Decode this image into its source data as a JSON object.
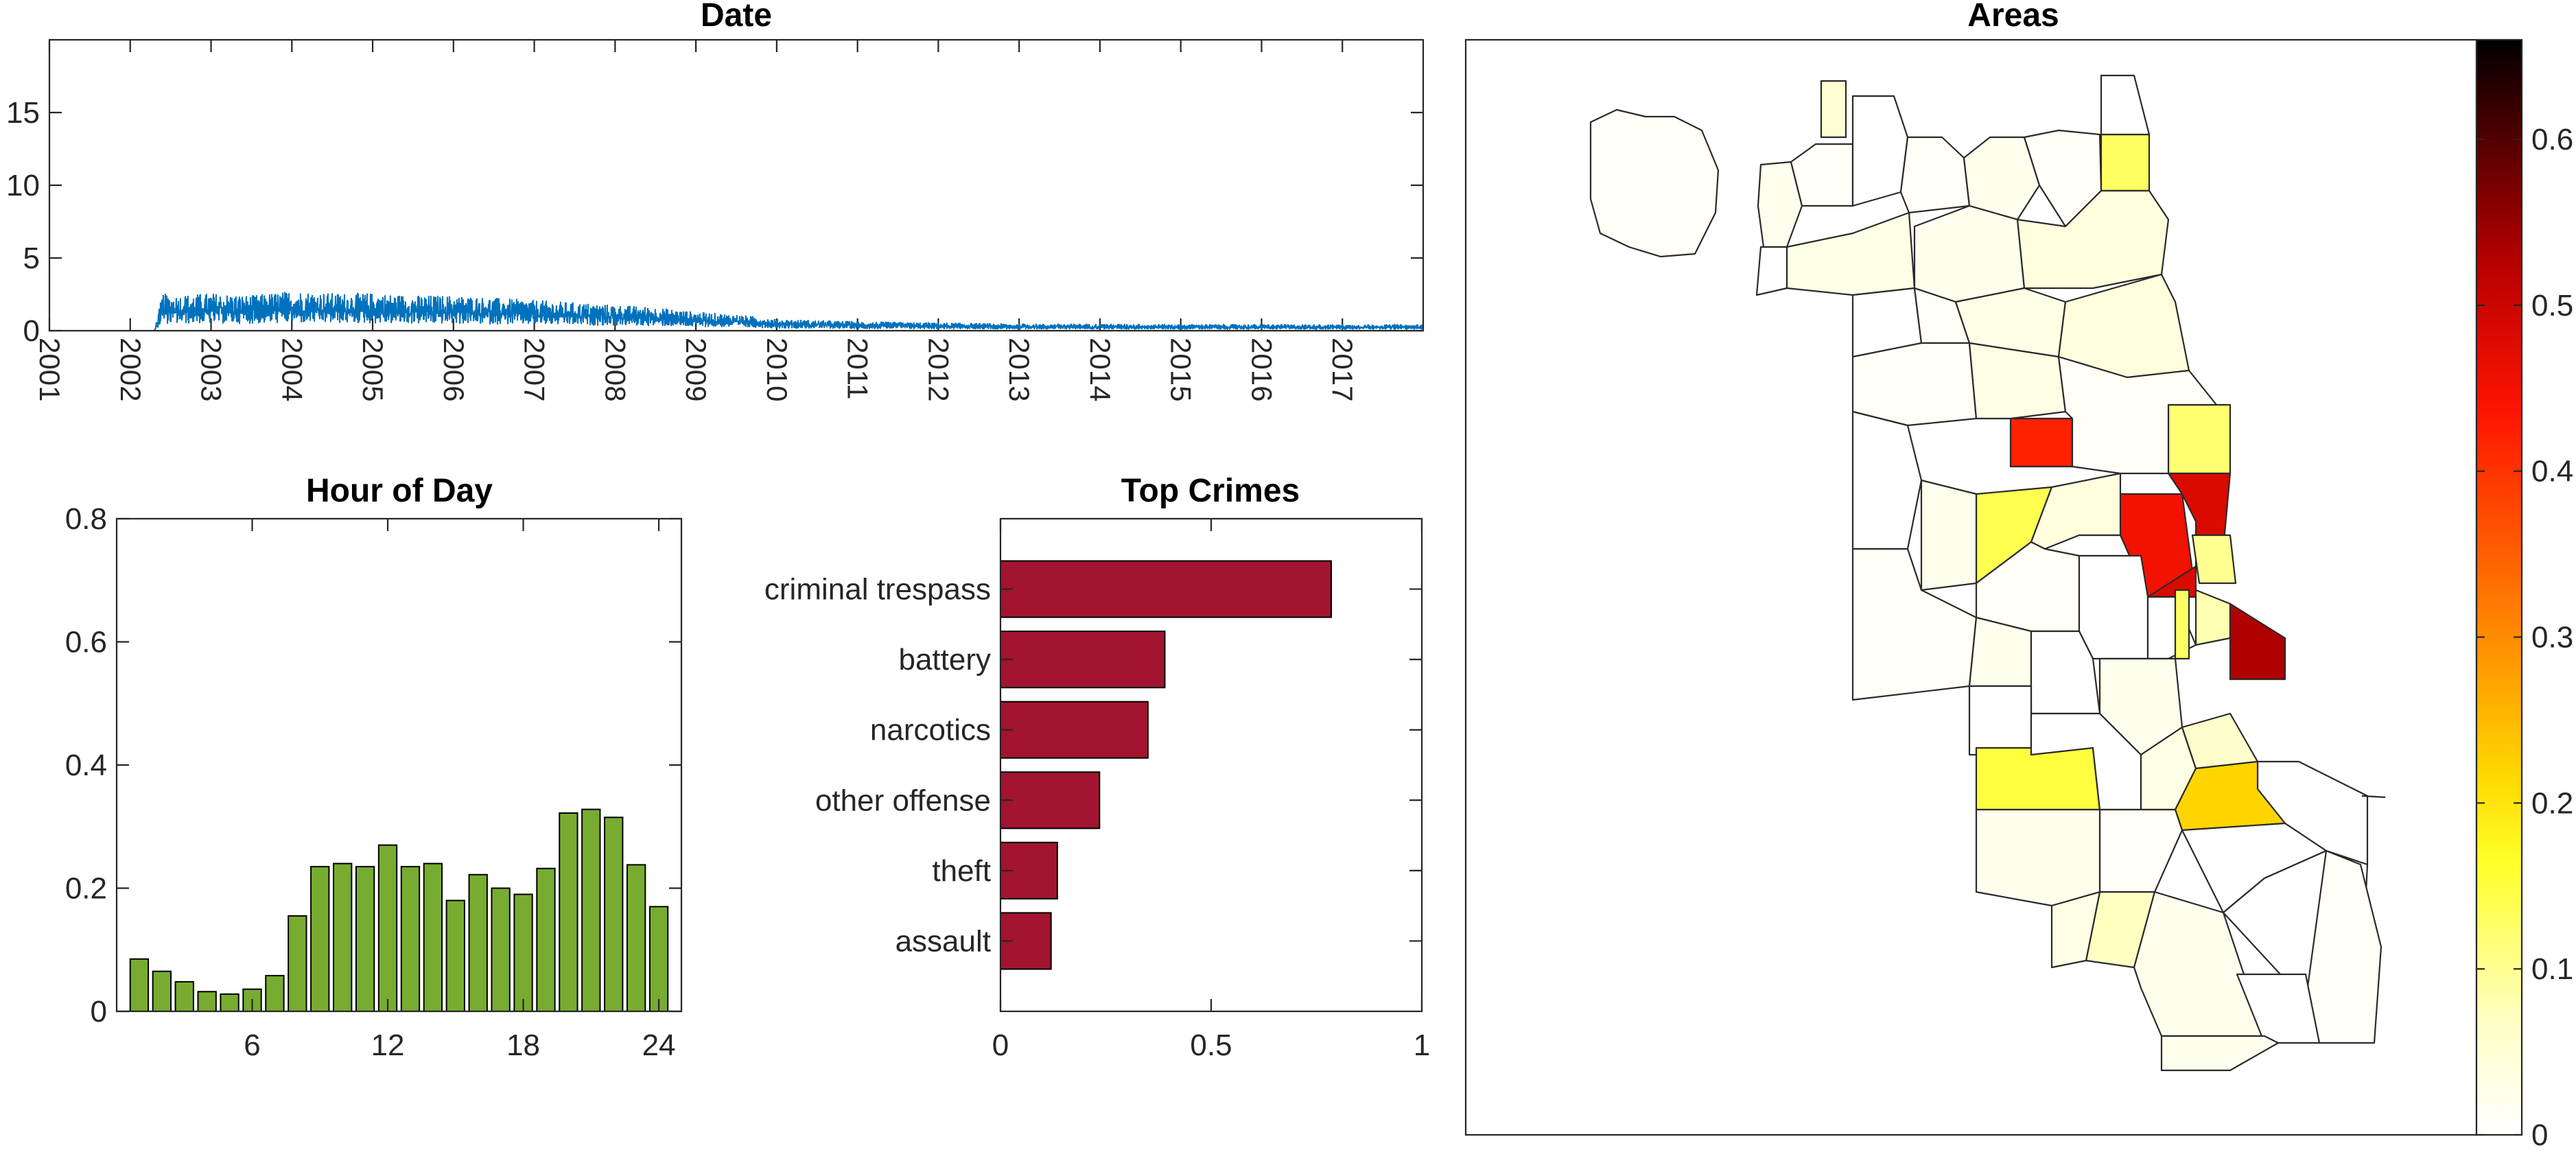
{
  "chart_data": [
    {
      "type": "line",
      "title": "Date",
      "xlabel": "",
      "ylabel": "",
      "xlim": [
        2001,
        2018
      ],
      "ylim": [
        0,
        20
      ],
      "yticks": [
        0,
        5,
        10,
        15
      ],
      "xticks": [
        "2001",
        "2002",
        "2003",
        "2004",
        "2005",
        "2006",
        "2007",
        "2008",
        "2009",
        "2010",
        "2011",
        "2012",
        "2013",
        "2014",
        "2015",
        "2016",
        "2017"
      ],
      "grid": false,
      "series": [
        {
          "color": "#0072BD",
          "x": [
            2001,
            2002.3,
            2002.4,
            2002.5,
            2003,
            2003.5,
            2004,
            2004.5,
            2005,
            2005.5,
            2006,
            2006.5,
            2007,
            2007.5,
            2008,
            2008.5,
            2009,
            2009.5,
            2010,
            2010.5,
            2011,
            2012,
            2013,
            2014,
            2015,
            2016,
            2017,
            2018
          ],
          "y": [
            0,
            0,
            1.6,
            1.5,
            1.6,
            1.5,
            1.7,
            1.6,
            1.6,
            1.5,
            1.5,
            1.4,
            1.3,
            1.2,
            1.1,
            1.0,
            0.8,
            0.7,
            0.5,
            0.45,
            0.4,
            0.35,
            0.3,
            0.3,
            0.28,
            0.28,
            0.27,
            0.27
          ]
        }
      ]
    },
    {
      "type": "bar",
      "title": "Hour of Day",
      "xlabel": "",
      "ylabel": "",
      "xlim": [
        0,
        25
      ],
      "ylim": [
        0,
        0.8
      ],
      "xticks": [
        "6",
        "12",
        "18",
        "24"
      ],
      "yticks": [
        "0",
        "0.2",
        "0.4",
        "0.6",
        "0.8"
      ],
      "categories": [
        1,
        2,
        3,
        4,
        5,
        6,
        7,
        8,
        9,
        10,
        11,
        12,
        13,
        14,
        15,
        16,
        17,
        18,
        19,
        20,
        21,
        22,
        23,
        24
      ],
      "values": [
        0.085,
        0.065,
        0.048,
        0.032,
        0.028,
        0.036,
        0.058,
        0.155,
        0.235,
        0.24,
        0.235,
        0.27,
        0.235,
        0.24,
        0.18,
        0.222,
        0.2,
        0.19,
        0.232,
        0.322,
        0.328,
        0.315,
        0.238,
        0.17
      ],
      "color": "#77AC30"
    },
    {
      "type": "bar",
      "orientation": "horizontal",
      "title": "Top Crimes",
      "xlabel": "",
      "ylabel": "",
      "xlim": [
        0,
        1
      ],
      "xticks": [
        "0",
        "0.5",
        "1"
      ],
      "categories": [
        "criminal trespass",
        "battery",
        "narcotics",
        "other offense",
        "theft",
        "assault"
      ],
      "values": [
        0.785,
        0.39,
        0.35,
        0.235,
        0.135,
        0.12
      ],
      "color": "#A2142F"
    },
    {
      "type": "heatmap",
      "subtype": "choropleth",
      "title": "Areas",
      "colormap": "hot (reversed)",
      "clim": [
        0,
        0.66
      ],
      "colorbar_ticks": [
        "0",
        "0.1",
        "0.2",
        "0.3",
        "0.4",
        "0.5",
        "0.6"
      ],
      "colorbar_position": "right",
      "regions": [
        {
          "value": 0.01
        },
        {
          "value": 0.05
        },
        {
          "value": 0.02
        },
        {
          "value": 0.13
        },
        {
          "value": 0.01
        },
        {
          "value": 0.0
        },
        {
          "value": 0.01
        },
        {
          "value": 0.02
        },
        {
          "value": 0.01
        },
        {
          "value": 0.0
        },
        {
          "value": 0.03
        },
        {
          "value": 0.02
        },
        {
          "value": 0.04
        },
        {
          "value": 0.0
        },
        {
          "value": 0.0
        },
        {
          "value": 0.01
        },
        {
          "value": 0.03
        },
        {
          "value": 0.04
        },
        {
          "value": 0.42
        },
        {
          "value": 0.01
        },
        {
          "value": 0.03
        },
        {
          "value": 0.12
        },
        {
          "value": 0.01
        },
        {
          "value": 0.0
        },
        {
          "value": 0.14
        },
        {
          "value": 0.45
        },
        {
          "value": 0.48
        },
        {
          "value": 0.04
        },
        {
          "value": 0.1
        },
        {
          "value": 0.02
        },
        {
          "value": 0.01
        },
        {
          "value": 0.0
        },
        {
          "value": 0.0
        },
        {
          "value": 0.13
        },
        {
          "value": 0.08
        },
        {
          "value": 0.53
        },
        {
          "value": 0.01
        },
        {
          "value": 0.02
        },
        {
          "value": 0.0
        },
        {
          "value": 0.02
        },
        {
          "value": 0.0
        },
        {
          "value": 0.15
        },
        {
          "value": 0.0
        },
        {
          "value": 0.03
        },
        {
          "value": 0.06
        },
        {
          "value": 0.0
        },
        {
          "value": 0.22
        },
        {
          "value": 0.01
        },
        {
          "value": 0.07
        },
        {
          "value": 0.02
        },
        {
          "value": 0.03
        },
        {
          "value": 0.0
        },
        {
          "value": 0.0
        },
        {
          "value": 0.01
        },
        {
          "value": 0.02
        },
        {
          "value": 0.01
        },
        {
          "value": 0.0
        },
        {
          "value": 0.02
        }
      ]
    }
  ]
}
